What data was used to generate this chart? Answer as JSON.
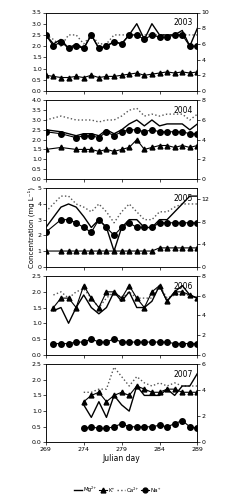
{
  "years": [
    "2003",
    "2004",
    "2005",
    "2006",
    "2007"
  ],
  "data": {
    "2003": {
      "julian": [
        269,
        270,
        271,
        272,
        273,
        274,
        275,
        276,
        277,
        278,
        279,
        280,
        281,
        282,
        283,
        284,
        285,
        286,
        287,
        288,
        289
      ],
      "Mg": [
        2.5,
        2.1,
        2.3,
        1.9,
        2.1,
        1.9,
        2.5,
        1.9,
        2.0,
        2.2,
        2.1,
        2.5,
        3.0,
        2.3,
        3.0,
        2.5,
        2.5,
        2.5,
        2.7,
        2.0,
        2.8
      ],
      "K": [
        0.7,
        0.65,
        0.6,
        0.6,
        0.65,
        0.6,
        0.7,
        0.6,
        0.65,
        0.65,
        0.7,
        0.75,
        0.8,
        0.7,
        0.75,
        0.8,
        0.85,
        0.8,
        0.85,
        0.8,
        0.85
      ],
      "Ca": [
        2.5,
        2.3,
        2.0,
        2.5,
        2.5,
        2.1,
        2.5,
        2.1,
        2.1,
        2.5,
        2.5,
        2.5,
        2.5,
        2.5,
        2.5,
        2.5,
        2.5,
        2.5,
        2.5,
        2.5,
        2.5
      ],
      "Na": [
        2.5,
        2.0,
        2.2,
        1.9,
        2.0,
        1.9,
        2.5,
        1.9,
        2.0,
        2.2,
        2.1,
        2.5,
        2.5,
        2.3,
        2.5,
        2.4,
        2.4,
        2.5,
        2.5,
        2.0,
        2.0
      ],
      "ylim_left": [
        0,
        3.5
      ],
      "ylim_right": [
        0,
        10
      ],
      "yticks_left": [
        0,
        0.5,
        1.0,
        1.5,
        2.0,
        2.5,
        3.0,
        3.5
      ],
      "yticks_right": [
        0,
        2,
        4,
        6,
        8,
        10
      ]
    },
    "2004": {
      "julian": [
        269,
        271,
        273,
        274,
        275,
        276,
        277,
        278,
        279,
        280,
        281,
        282,
        283,
        284,
        285,
        286,
        287,
        288,
        289
      ],
      "Mg": [
        2.5,
        2.4,
        2.2,
        2.3,
        2.3,
        2.2,
        2.5,
        2.3,
        2.5,
        2.8,
        3.0,
        2.7,
        3.0,
        2.7,
        2.8,
        2.8,
        2.8,
        2.5,
        2.8
      ],
      "K": [
        1.5,
        1.6,
        1.5,
        1.5,
        1.5,
        1.4,
        1.5,
        1.4,
        1.5,
        1.6,
        2.0,
        1.5,
        1.6,
        1.7,
        1.7,
        1.6,
        1.7,
        1.6,
        1.7
      ],
      "Ca": [
        3.0,
        3.2,
        3.0,
        3.0,
        3.0,
        2.9,
        3.0,
        3.0,
        3.2,
        3.5,
        3.6,
        3.2,
        3.3,
        3.2,
        3.3,
        3.3,
        3.3,
        3.0,
        3.3
      ],
      "Na": [
        2.4,
        2.3,
        2.1,
        2.2,
        2.2,
        2.1,
        2.4,
        2.2,
        2.4,
        2.5,
        2.5,
        2.4,
        2.5,
        2.4,
        2.4,
        2.4,
        2.4,
        2.3,
        2.3
      ],
      "ylim_left": [
        0,
        4
      ],
      "ylim_right": [
        0,
        8
      ],
      "yticks_left": [
        0,
        0.5,
        1.0,
        1.5,
        2.0,
        2.5,
        3.0,
        3.5,
        4.0
      ],
      "yticks_right": [
        0,
        2,
        4,
        6,
        8
      ]
    },
    "2005": {
      "julian": [
        269,
        271,
        272,
        273,
        274,
        275,
        276,
        277,
        278,
        279,
        280,
        281,
        282,
        283,
        284,
        285,
        286,
        287,
        288,
        289
      ],
      "Mg": [
        2.5,
        3.8,
        4.0,
        3.8,
        3.2,
        2.5,
        3.0,
        2.5,
        1.0,
        2.5,
        3.0,
        3.0,
        2.5,
        2.5,
        3.0,
        3.0,
        3.5,
        4.0,
        4.5,
        4.5
      ],
      "K": [
        1.0,
        1.0,
        1.0,
        1.0,
        1.0,
        1.0,
        1.0,
        1.0,
        1.0,
        1.0,
        1.0,
        1.0,
        1.0,
        1.0,
        1.2,
        1.2,
        1.2,
        1.2,
        1.2,
        1.2
      ],
      "Ca": [
        3.5,
        4.5,
        4.5,
        4.0,
        3.8,
        3.5,
        4.0,
        3.5,
        2.8,
        3.5,
        4.0,
        3.5,
        3.0,
        3.0,
        3.5,
        3.5,
        3.8,
        4.0,
        4.0,
        4.0
      ],
      "Na": [
        2.2,
        3.0,
        3.0,
        2.8,
        2.5,
        2.2,
        3.0,
        2.5,
        2.0,
        2.5,
        2.8,
        2.5,
        2.5,
        2.5,
        2.8,
        2.8,
        2.8,
        2.8,
        2.8,
        2.8
      ],
      "ylim_left": [
        0,
        5
      ],
      "ylim_right": [
        0,
        14
      ],
      "yticks_left": [
        0,
        1,
        2,
        3,
        4,
        5
      ],
      "yticks_right": [
        0,
        4,
        8,
        12
      ]
    },
    "2006": {
      "julian": [
        270,
        271,
        272,
        273,
        274,
        275,
        276,
        277,
        278,
        279,
        280,
        281,
        282,
        283,
        284,
        285,
        286,
        287,
        288,
        289
      ],
      "Mg": [
        1.4,
        1.5,
        1.0,
        1.5,
        1.9,
        1.5,
        1.3,
        1.5,
        2.0,
        1.7,
        2.0,
        1.5,
        1.5,
        1.7,
        2.2,
        1.7,
        2.0,
        2.2,
        1.9,
        1.8
      ],
      "K": [
        1.5,
        1.8,
        1.8,
        1.5,
        2.2,
        1.8,
        1.5,
        2.0,
        2.0,
        1.8,
        2.2,
        1.8,
        1.5,
        2.0,
        2.2,
        1.7,
        2.0,
        2.0,
        1.9,
        1.8
      ],
      "Ca": [
        1.9,
        2.0,
        1.8,
        2.0,
        2.1,
        1.8,
        1.5,
        1.8,
        2.0,
        1.8,
        2.0,
        1.8,
        1.8,
        1.8,
        2.2,
        1.8,
        1.9,
        1.9,
        1.9,
        1.8
      ],
      "Na": [
        0.35,
        0.35,
        0.35,
        0.4,
        0.4,
        0.5,
        0.4,
        0.4,
        0.5,
        0.4,
        0.4,
        0.4,
        0.4,
        0.4,
        0.4,
        0.4,
        0.35,
        0.35,
        0.35,
        0.35
      ],
      "ylim_left": [
        0,
        2.5
      ],
      "ylim_right": [
        0,
        8
      ],
      "yticks_left": [
        0,
        0.5,
        1.0,
        1.5,
        2.0,
        2.5
      ],
      "yticks_right": [
        0,
        2,
        4,
        6,
        8
      ]
    },
    "2007": {
      "julian": [
        274,
        275,
        276,
        277,
        278,
        279,
        280,
        281,
        282,
        283,
        284,
        285,
        286,
        287,
        288,
        289
      ],
      "Mg": [
        1.2,
        0.8,
        1.3,
        0.8,
        1.5,
        1.2,
        1.0,
        1.8,
        1.5,
        1.5,
        1.5,
        1.7,
        1.5,
        1.8,
        1.8,
        2.2
      ],
      "K": [
        1.3,
        1.5,
        1.6,
        1.3,
        1.5,
        1.6,
        1.5,
        1.8,
        1.7,
        1.6,
        1.6,
        1.7,
        1.7,
        1.6,
        1.6,
        1.6
      ],
      "Ca": [
        1.6,
        1.6,
        1.7,
        1.7,
        2.4,
        2.1,
        1.8,
        2.1,
        1.9,
        1.8,
        1.9,
        1.8,
        1.9,
        1.8,
        1.8,
        1.8
      ],
      "Na": [
        0.45,
        0.5,
        0.45,
        0.45,
        0.5,
        0.6,
        0.5,
        0.5,
        0.5,
        0.5,
        0.55,
        0.5,
        0.6,
        0.7,
        0.5,
        0.45
      ],
      "ylim_left": [
        0,
        2.5
      ],
      "ylim_right": [
        0,
        6
      ],
      "yticks_left": [
        0,
        0.5,
        1.0,
        1.5,
        2.0,
        2.5
      ],
      "yticks_right": [
        0,
        2,
        4,
        6
      ]
    }
  },
  "legend_labels": [
    "Mg²⁺",
    "K⁺",
    "Ca²⁺",
    "Na⁺"
  ],
  "xlabel": "Julian day",
  "ylabel": "Concentration (mg L⁻¹)",
  "xrange": [
    269,
    289
  ],
  "xticks": [
    269,
    274,
    279,
    284,
    289
  ]
}
